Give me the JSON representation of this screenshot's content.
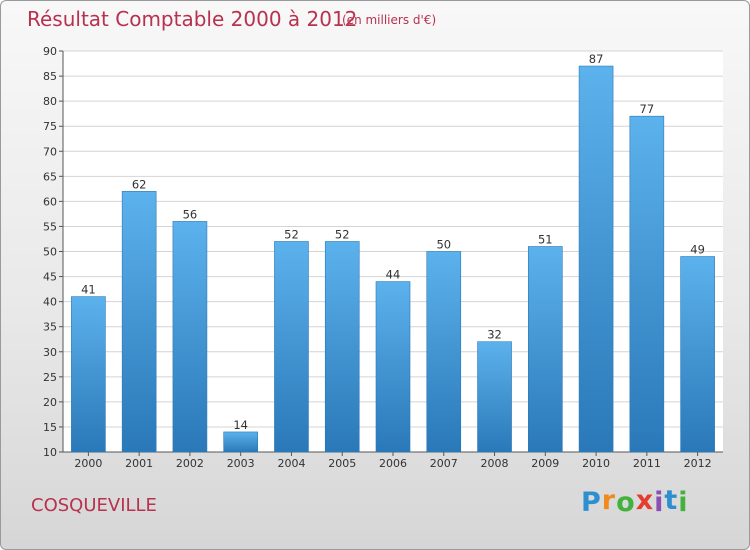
{
  "chart_data": {
    "type": "bar",
    "title": "Résultat Comptable 2000 à 2012",
    "subtitle": "(en milliers d'€)",
    "categories": [
      "2000",
      "2001",
      "2002",
      "2003",
      "2004",
      "2005",
      "2006",
      "2007",
      "2008",
      "2009",
      "2010",
      "2011",
      "2012"
    ],
    "values": [
      41,
      62,
      56,
      14,
      52,
      52,
      44,
      50,
      32,
      51,
      87,
      77,
      49
    ],
    "ylim": [
      10,
      90
    ],
    "yticks": [
      10,
      15,
      20,
      25,
      30,
      35,
      40,
      45,
      50,
      55,
      60,
      65,
      70,
      75,
      80,
      85,
      90
    ],
    "grid": true,
    "xlabel": "",
    "ylabel": ""
  },
  "footer": {
    "city": "COSQUEVILLE"
  },
  "brand": {
    "letters": [
      "P",
      "r",
      "o",
      "x",
      "i",
      "t",
      "i"
    ],
    "colors": [
      "#2e8fd0",
      "#f08a1d",
      "#43b23c",
      "#e53c2f",
      "#8a4fb5",
      "#2e8fd0",
      "#43b23c"
    ]
  },
  "colors": {
    "accent": "#b8314f",
    "bar_light": "#5cb2ec",
    "bar_dark": "#2a78b8"
  }
}
